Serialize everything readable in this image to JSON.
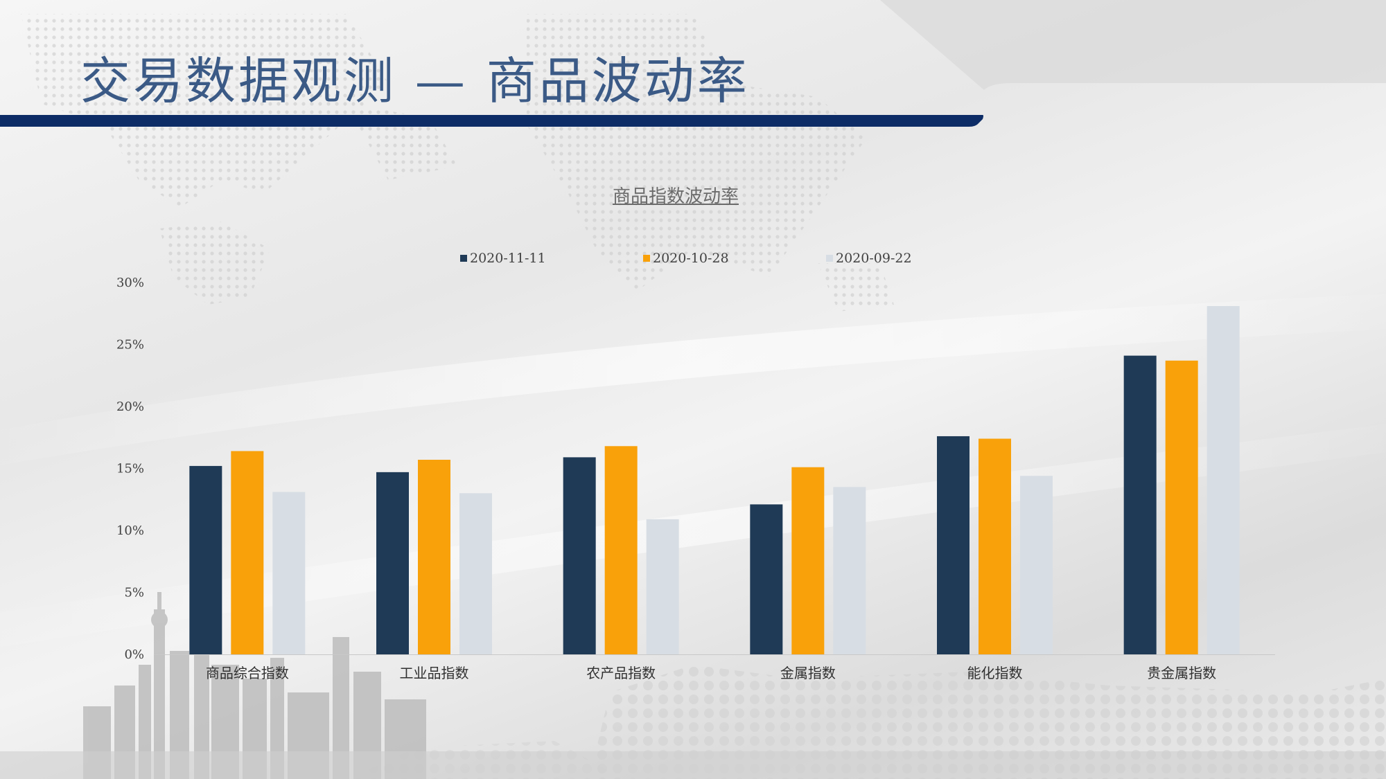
{
  "slide": {
    "title": "交易数据观测 — 商品波动率"
  },
  "colors": {
    "title_text": "#3b5a86",
    "title_bar": "#0d2c66",
    "background": "#eeeeee"
  },
  "chart_data": {
    "type": "bar",
    "title": "商品指数波动率",
    "xlabel": "",
    "ylabel": "",
    "categories": [
      "商品综合指数",
      "工业品指数",
      "农产品指数",
      "金属指数",
      "能化指数",
      "贵金属指数"
    ],
    "series": [
      {
        "name": "2020-11-11",
        "color": "#1f3a56",
        "values": [
          15.2,
          14.7,
          15.9,
          12.1,
          17.6,
          24.1
        ]
      },
      {
        "name": "2020-10-28",
        "color": "#f9a10a",
        "values": [
          16.4,
          15.7,
          16.8,
          15.1,
          17.4,
          23.7
        ]
      },
      {
        "name": "2020-09-22",
        "color": "#d7dde4",
        "values": [
          13.1,
          13.0,
          10.9,
          13.5,
          14.4,
          28.1
        ]
      }
    ],
    "ylim": [
      0,
      30
    ],
    "yticks": [
      "0%",
      "5%",
      "10%",
      "15%",
      "20%",
      "25%",
      "30%"
    ],
    "grid": false,
    "legend_position": "top"
  }
}
